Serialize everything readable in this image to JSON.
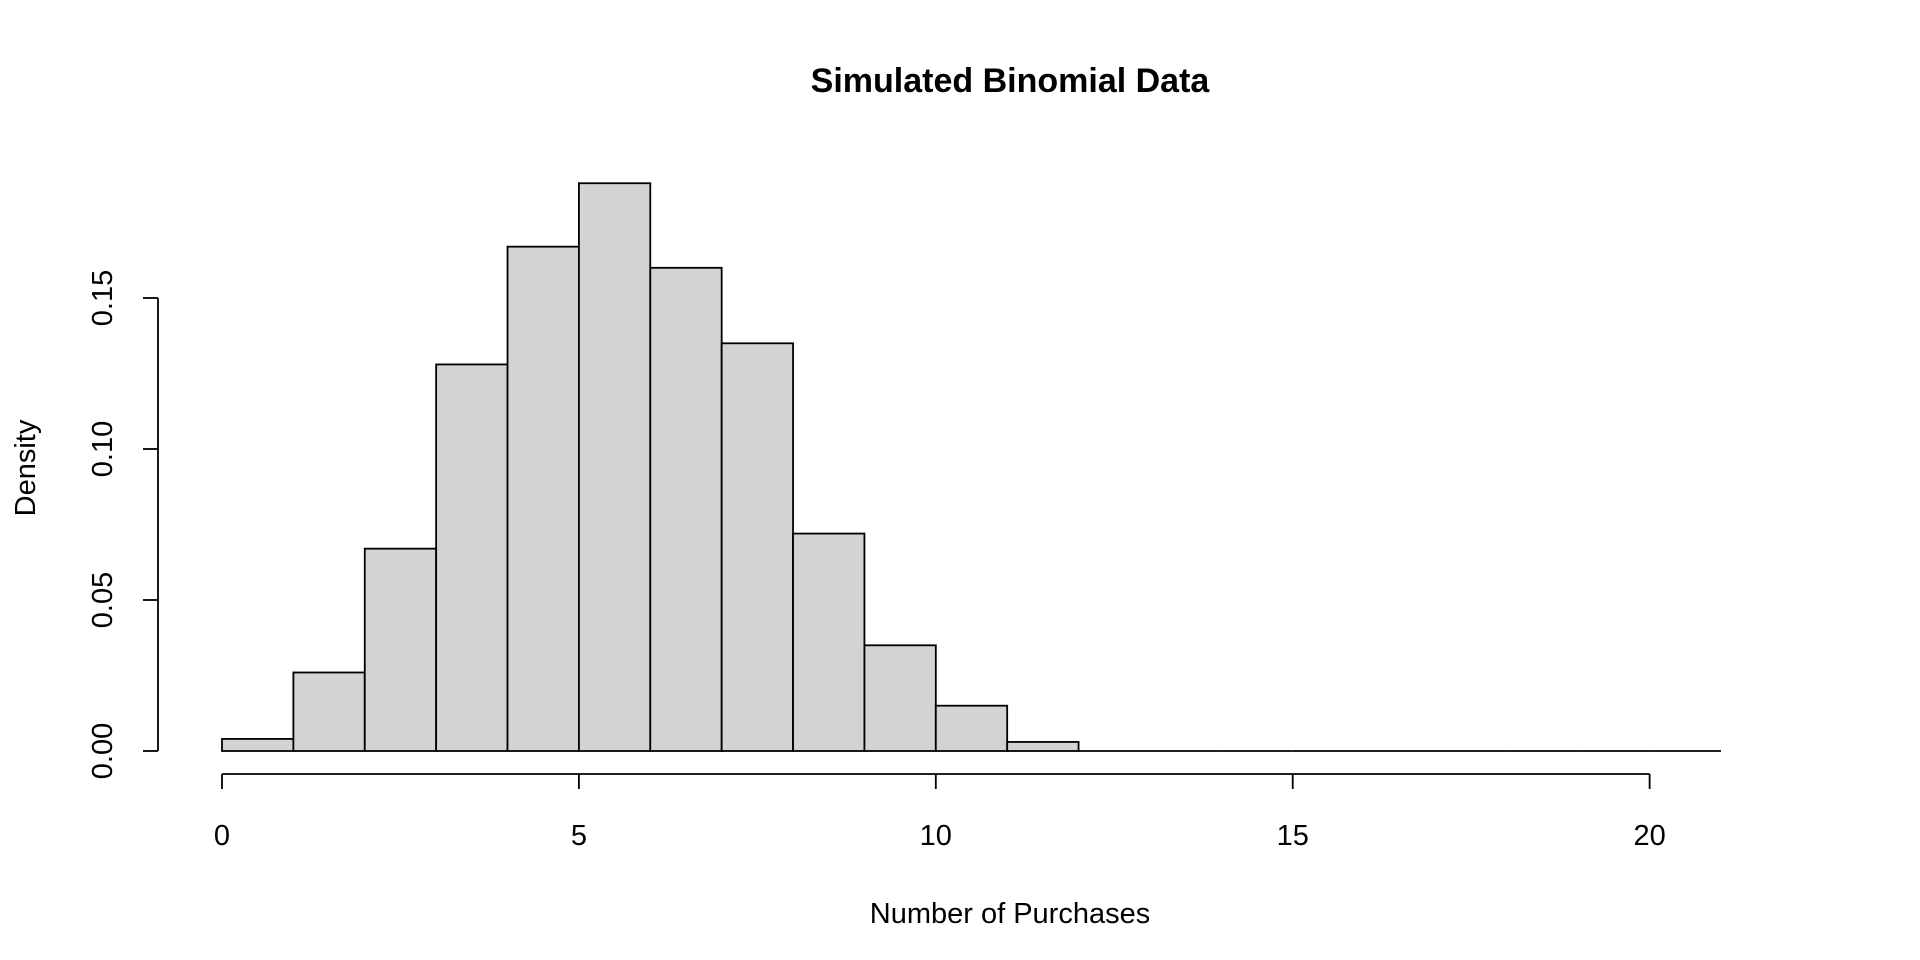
{
  "chart_data": {
    "type": "bar",
    "title": "Simulated Binomial Data",
    "xlabel": "Number of Purchases",
    "ylabel": "Density",
    "bin_edges": [
      0,
      1,
      2,
      3,
      4,
      5,
      6,
      7,
      8,
      9,
      10,
      11,
      12,
      13,
      14,
      15,
      16,
      17,
      18,
      19,
      20,
      21
    ],
    "values": [
      0.004,
      0.026,
      0.067,
      0.128,
      0.167,
      0.188,
      0.16,
      0.135,
      0.072,
      0.035,
      0.015,
      0.003,
      0,
      0,
      0,
      0,
      0,
      0,
      0,
      0,
      0
    ],
    "xlim": [
      0,
      21
    ],
    "ylim": [
      0,
      0.19
    ],
    "x_ticks": [
      0,
      5,
      10,
      15,
      20
    ],
    "x_tick_labels": [
      "0",
      "5",
      "10",
      "15",
      "20"
    ],
    "y_ticks": [
      0,
      0.05,
      0.1,
      0.15
    ],
    "y_tick_labels": [
      "0.00",
      "0.05",
      "0.10",
      "0.15"
    ],
    "grid": false,
    "colors": {
      "bar_fill": "#d3d3d3",
      "bar_stroke": "#000000"
    }
  }
}
